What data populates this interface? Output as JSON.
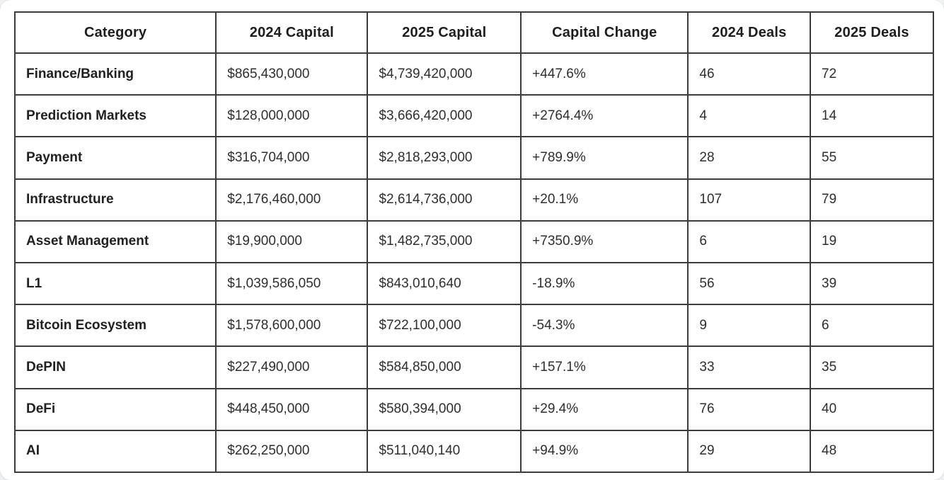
{
  "chart_data": {
    "type": "table",
    "title": "",
    "columns": [
      "Category",
      "2024 Capital",
      "2025 Capital",
      "Capital Change",
      "2024 Deals",
      "2025 Deals"
    ],
    "rows": [
      [
        "Finance/Banking",
        "$865,430,000",
        "$4,739,420,000",
        "+447.6%",
        "46",
        "72"
      ],
      [
        "Prediction Markets",
        "$128,000,000",
        "$3,666,420,000",
        "+2764.4%",
        "4",
        "14"
      ],
      [
        "Payment",
        "$316,704,000",
        "$2,818,293,000",
        "+789.9%",
        "28",
        "55"
      ],
      [
        "Infrastructure",
        "$2,176,460,000",
        "$2,614,736,000",
        "+20.1%",
        "107",
        "79"
      ],
      [
        "Asset Management",
        "$19,900,000",
        "$1,482,735,000",
        "+7350.9%",
        "6",
        "19"
      ],
      [
        "L1",
        "$1,039,586,050",
        "$843,010,640",
        "-18.9%",
        "56",
        "39"
      ],
      [
        "Bitcoin Ecosystem",
        "$1,578,600,000",
        "$722,100,000",
        "-54.3%",
        "9",
        "6"
      ],
      [
        "DePIN",
        "$227,490,000",
        "$584,850,000",
        "+157.1%",
        "33",
        "35"
      ],
      [
        "DeFi",
        "$448,450,000",
        "$580,394,000",
        "+29.4%",
        "76",
        "40"
      ],
      [
        "AI",
        "$262,250,000",
        "$511,040,140",
        "+94.9%",
        "29",
        "48"
      ]
    ]
  },
  "colors": {
    "border": "#3c3c3c",
    "header_text": "#1e1e1e",
    "cell_text": "#2e2e2e",
    "card_background": "#ffffff",
    "page_background": "#eef0f1"
  }
}
